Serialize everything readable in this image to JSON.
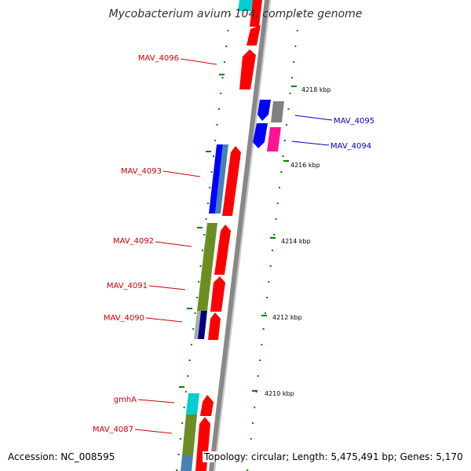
{
  "title": "Mycobacterium avium 104, complete genome",
  "accession": "Accession: NC_008595",
  "summary": "Topology: circular; Length: 5,475,491 bp; Genes: 5,170",
  "colors": {
    "backbone": "#888888",
    "forward_cds": "#ff0000",
    "reverse_cds": "#0000ff",
    "other_gene": "#808080",
    "pink_gene": "#ff1493",
    "olive_feature": "#6b8e23",
    "cyan_feature": "#00ced1",
    "steel_feature": "#4682b4",
    "tick": "#008000",
    "label_red": "#cc0000",
    "label_blue": "#0000cc"
  },
  "gene_labels": [
    {
      "text": "MAV_4096",
      "color": "#cc0000"
    },
    {
      "text": "MAV_4095",
      "color": "#0000cc"
    },
    {
      "text": "MAV_4094",
      "color": "#0000cc"
    },
    {
      "text": "MAV_4093",
      "color": "#cc0000"
    },
    {
      "text": "MAV_4092",
      "color": "#cc0000"
    },
    {
      "text": "MAV_4091",
      "color": "#cc0000"
    },
    {
      "text": "MAV_4090",
      "color": "#cc0000"
    },
    {
      "text": "gmhA",
      "color": "#cc0000"
    },
    {
      "text": "MAV_4087",
      "color": "#cc0000"
    }
  ],
  "tick_labels": [
    "4218 kbp",
    "4216 kbp",
    "4214 kbp",
    "4212 kbp",
    "4210 kbp"
  ]
}
